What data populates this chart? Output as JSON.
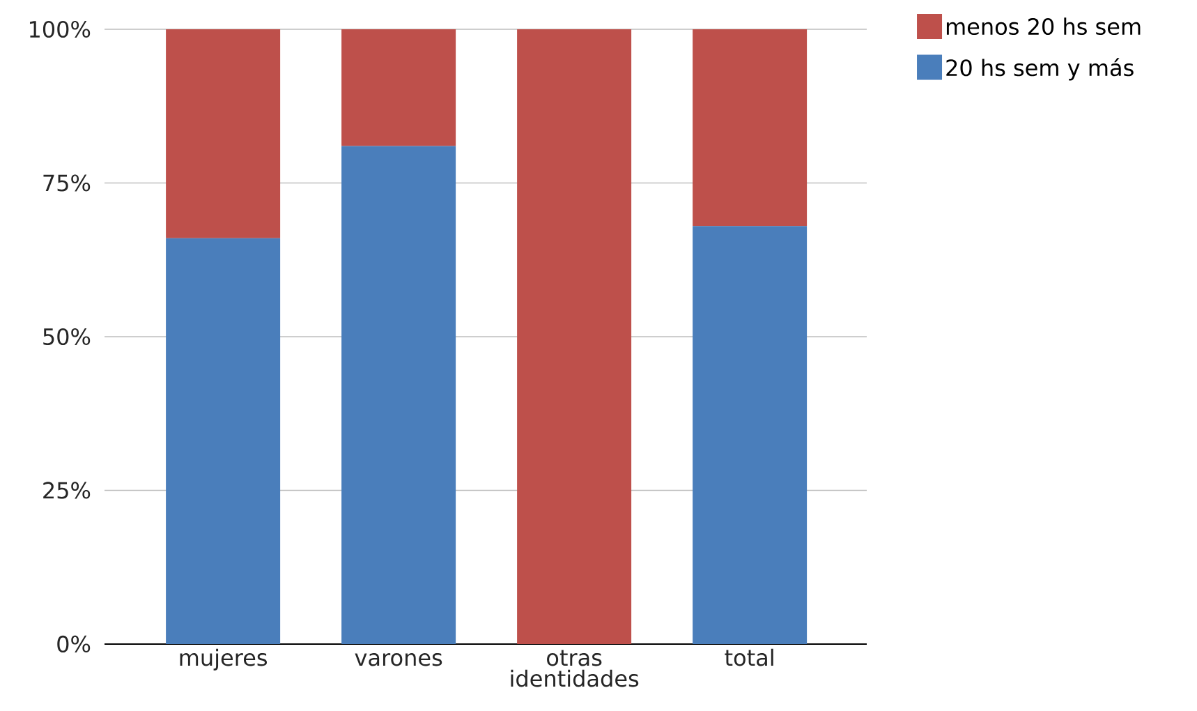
{
  "chart_data": {
    "type": "bar",
    "stacked": true,
    "categories": [
      "mujeres",
      "varones",
      "otras identidades",
      "total"
    ],
    "series": [
      {
        "name": "20 hs sem y más",
        "color": "#4a7ebb",
        "values": [
          66,
          81,
          0,
          68
        ]
      },
      {
        "name": "menos 20 hs sem",
        "color": "#be504b",
        "values": [
          34,
          19,
          100,
          32
        ]
      }
    ],
    "ylim": [
      0,
      100
    ],
    "yticks": [
      {
        "value": 0,
        "label": "0%"
      },
      {
        "value": 25,
        "label": "25%"
      },
      {
        "value": 50,
        "label": "50%"
      },
      {
        "value": 75,
        "label": "75%"
      },
      {
        "value": 100,
        "label": "100%"
      }
    ],
    "grid": "y",
    "legend": "right"
  }
}
